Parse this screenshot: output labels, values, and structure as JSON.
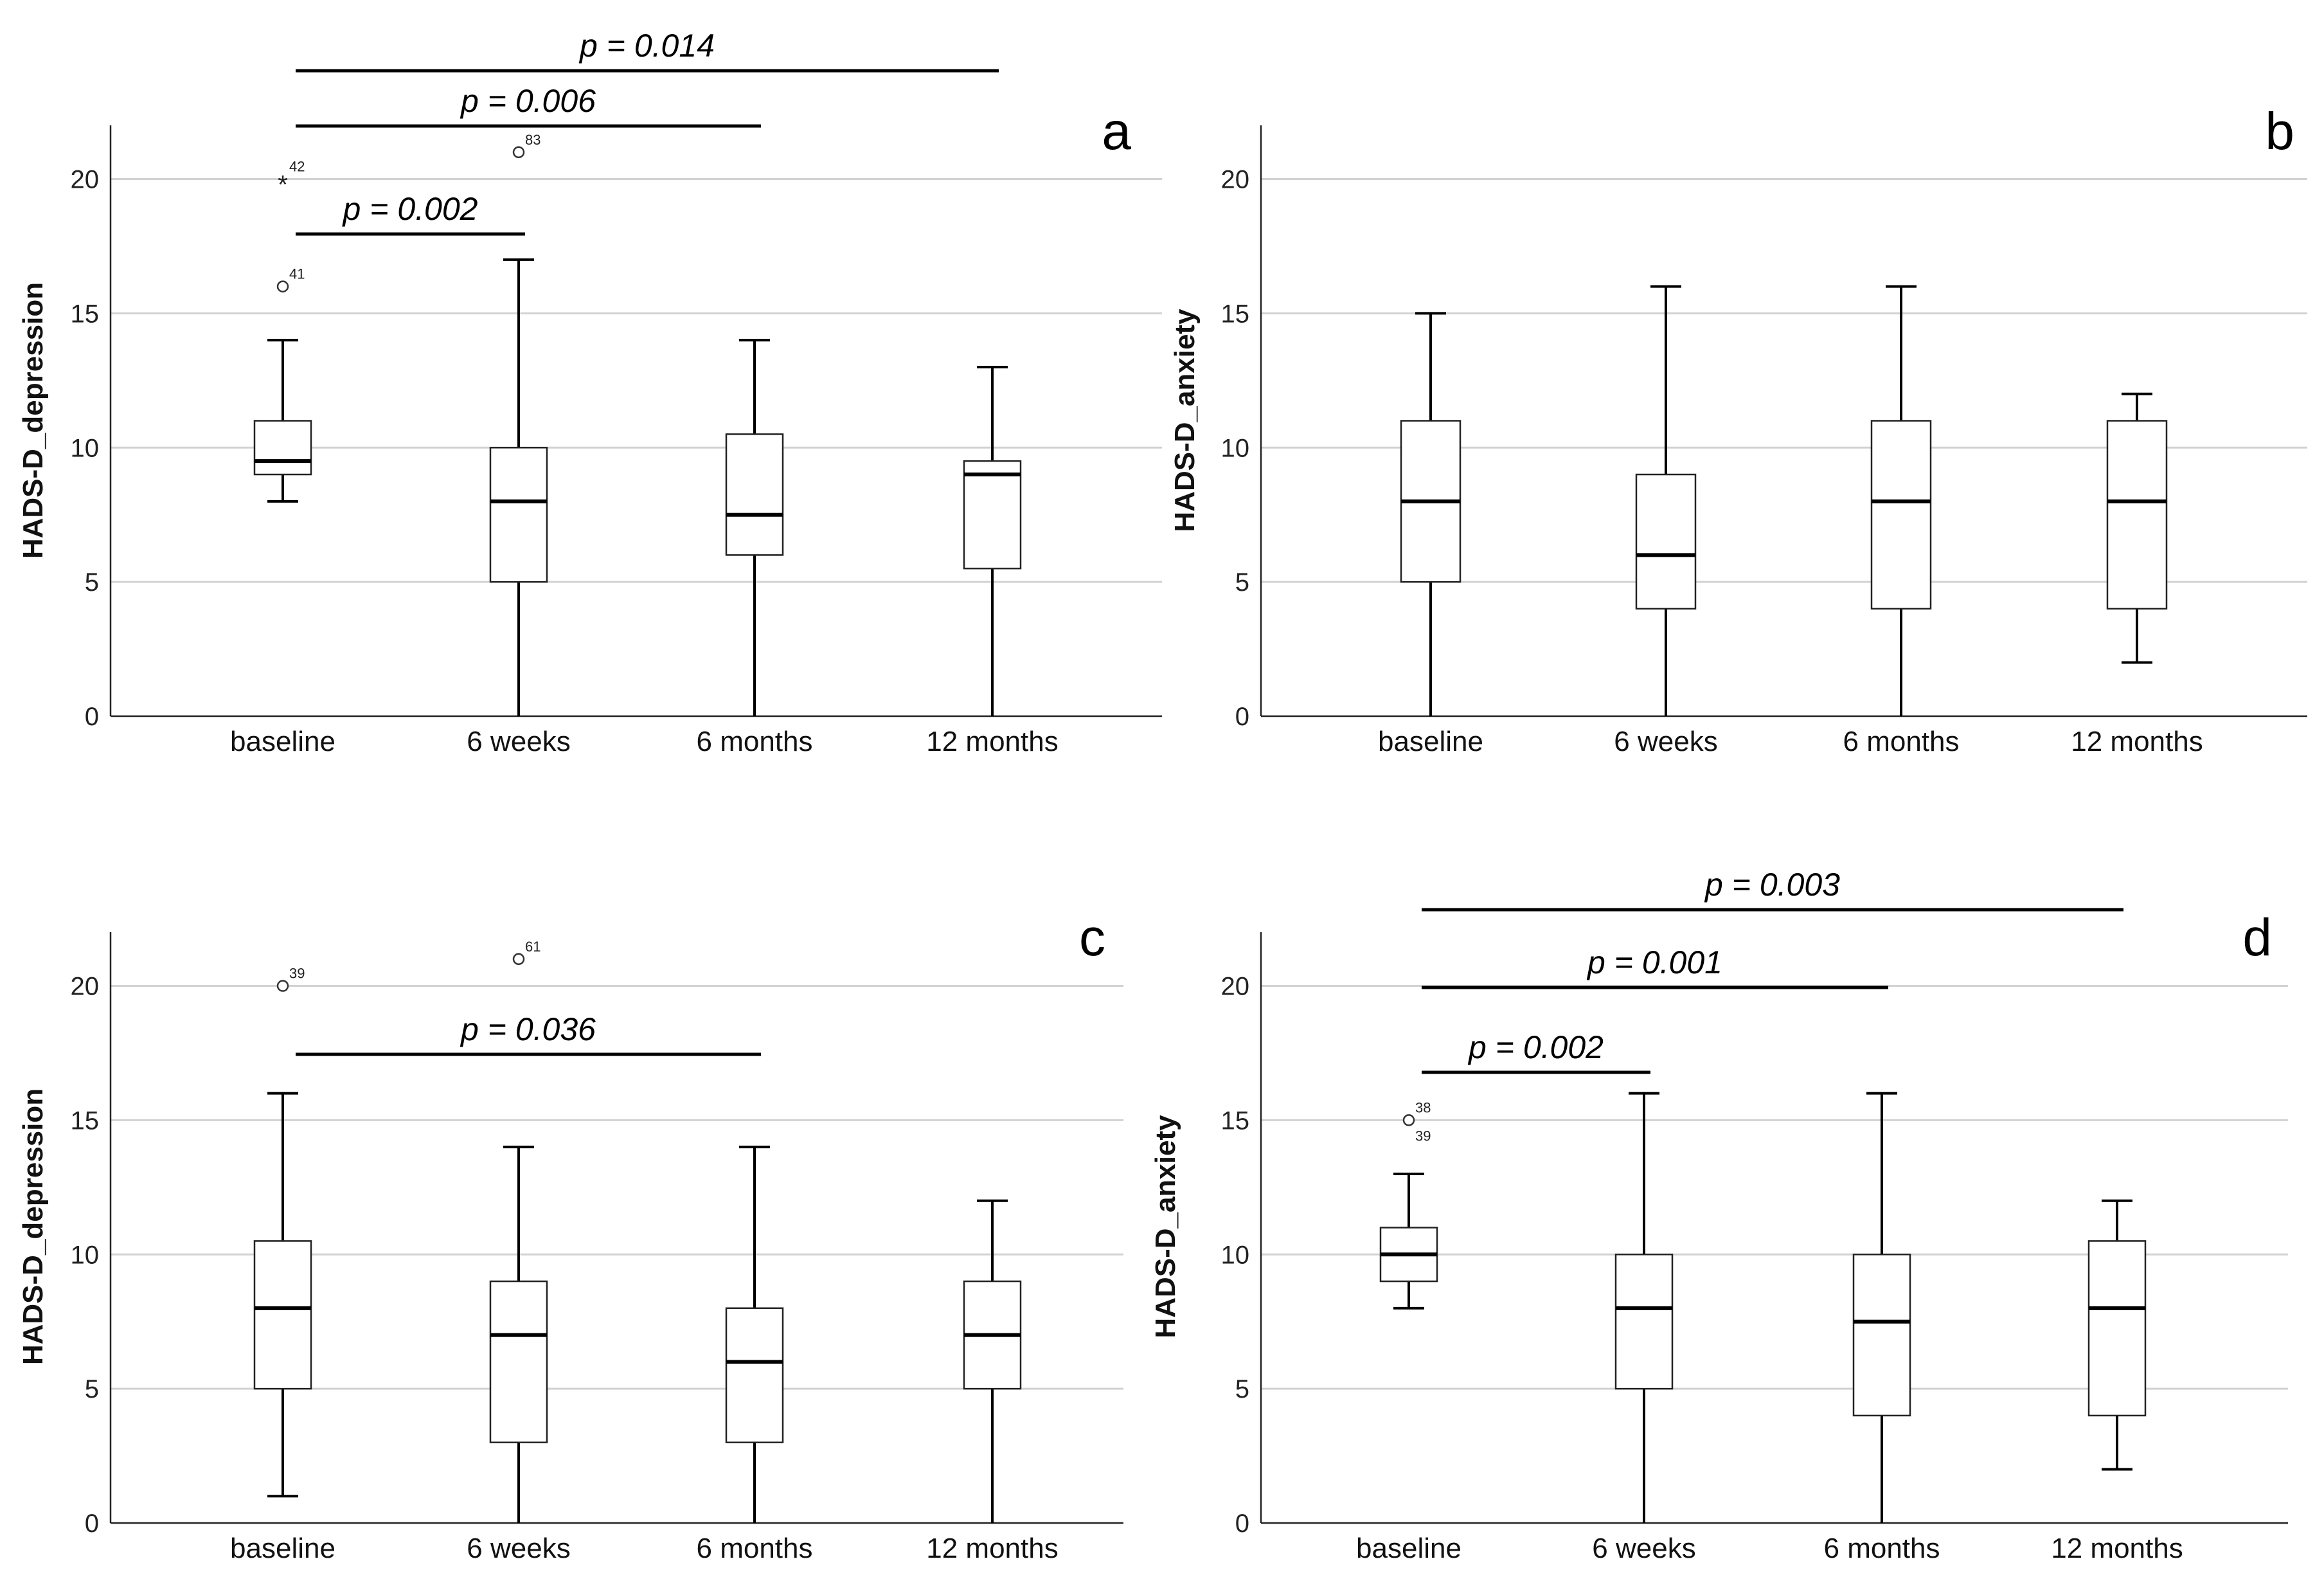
{
  "chart_data": [
    {
      "type": "boxplot",
      "panel": "a",
      "ylabel": "HADS-D_depression",
      "ylim": [
        0,
        22
      ],
      "yticks": [
        "0",
        "5",
        "10",
        "15",
        "20"
      ],
      "grid": true,
      "categories": [
        "baseline",
        "6 weeks",
        "6 months",
        "12 months"
      ],
      "boxes": [
        {
          "min": 8,
          "q1": 9,
          "median": 9.5,
          "q3": 11,
          "max": 14
        },
        {
          "min": 0,
          "q1": 5,
          "median": 8,
          "q3": 10,
          "max": 17
        },
        {
          "min": 0,
          "q1": 6,
          "median": 7.5,
          "q3": 10.5,
          "max": 14
        },
        {
          "min": 0,
          "q1": 5.5,
          "median": 9,
          "q3": 9.5,
          "max": 13
        }
      ],
      "outliers": [
        {
          "category": 0,
          "value": 20,
          "label": "42",
          "marker": "star"
        },
        {
          "category": 0,
          "value": 16,
          "label": "41",
          "marker": "circle"
        },
        {
          "category": 1,
          "value": 21,
          "label": "83",
          "marker": "circle"
        }
      ],
      "comparisons": [
        {
          "from": 0,
          "to": 3,
          "label": "p = 0.014"
        },
        {
          "from": 0,
          "to": 2,
          "label": "p = 0.006"
        },
        {
          "from": 0,
          "to": 1,
          "label": "p = 0.002"
        }
      ]
    },
    {
      "type": "boxplot",
      "panel": "b",
      "ylabel": "HADS-D_anxiety",
      "ylim": [
        0,
        22
      ],
      "yticks": [
        "0",
        "5",
        "10",
        "15",
        "20"
      ],
      "grid": true,
      "categories": [
        "baseline",
        "6 weeks",
        "6 months",
        "12 months"
      ],
      "boxes": [
        {
          "min": 0,
          "q1": 5,
          "median": 8,
          "q3": 11,
          "max": 15
        },
        {
          "min": 0,
          "q1": 4,
          "median": 6,
          "q3": 9,
          "max": 16
        },
        {
          "min": 0,
          "q1": 4,
          "median": 8,
          "q3": 11,
          "max": 16
        },
        {
          "min": 2,
          "q1": 4,
          "median": 8,
          "q3": 11,
          "max": 12
        }
      ],
      "outliers": [],
      "comparisons": []
    },
    {
      "type": "boxplot",
      "panel": "c",
      "ylabel": "HADS-D_depression",
      "ylim": [
        0,
        22
      ],
      "yticks": [
        "0",
        "5",
        "10",
        "15",
        "20"
      ],
      "grid": true,
      "categories": [
        "baseline",
        "6 weeks",
        "6 months",
        "12 months"
      ],
      "boxes": [
        {
          "min": 1,
          "q1": 5,
          "median": 8,
          "q3": 10.5,
          "max": 16
        },
        {
          "min": 0,
          "q1": 3,
          "median": 7,
          "q3": 9,
          "max": 14
        },
        {
          "min": 0,
          "q1": 3,
          "median": 6,
          "q3": 8,
          "max": 14
        },
        {
          "min": 0,
          "q1": 5,
          "median": 7,
          "q3": 9,
          "max": 12
        }
      ],
      "outliers": [
        {
          "category": 0,
          "value": 20,
          "label": "39",
          "marker": "circle"
        },
        {
          "category": 1,
          "value": 21,
          "label": "61",
          "marker": "circle"
        }
      ],
      "comparisons": [
        {
          "from": 0,
          "to": 2,
          "label": "p = 0.036"
        }
      ]
    },
    {
      "type": "boxplot",
      "panel": "d",
      "ylabel": "HADS-D_anxiety",
      "ylim": [
        0,
        22
      ],
      "yticks": [
        "0",
        "5",
        "10",
        "15",
        "20"
      ],
      "grid": true,
      "categories": [
        "baseline",
        "6 weeks",
        "6 months",
        "12 months"
      ],
      "boxes": [
        {
          "min": 8,
          "q1": 9,
          "median": 10,
          "q3": 11,
          "max": 13
        },
        {
          "min": 0,
          "q1": 5,
          "median": 8,
          "q3": 10,
          "max": 16
        },
        {
          "min": 0,
          "q1": 4,
          "median": 7.5,
          "q3": 10,
          "max": 16
        },
        {
          "min": 2,
          "q1": 4,
          "median": 8,
          "q3": 10.5,
          "max": 12
        }
      ],
      "outliers": [
        {
          "category": 0,
          "value": 15,
          "label": "38",
          "label2": "39",
          "marker": "circle"
        }
      ],
      "comparisons": [
        {
          "from": 0,
          "to": 3,
          "label": "p = 0.003"
        },
        {
          "from": 0,
          "to": 2,
          "label": "p = 0.001"
        },
        {
          "from": 0,
          "to": 1,
          "label": "p = 0.002"
        }
      ]
    }
  ]
}
